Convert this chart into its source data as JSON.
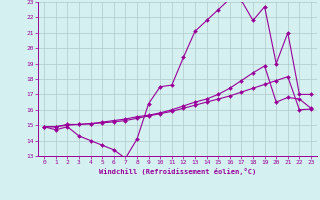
{
  "xlabel": "Windchill (Refroidissement éolien,°C)",
  "bg_color": "#d5f0f0",
  "line_color": "#990099",
  "grid_color": "#b0c8c8",
  "xlim": [
    -0.5,
    23.5
  ],
  "ylim": [
    13,
    23
  ],
  "xticks": [
    0,
    1,
    2,
    3,
    4,
    5,
    6,
    7,
    8,
    9,
    10,
    11,
    12,
    13,
    14,
    15,
    16,
    17,
    18,
    19,
    20,
    21,
    22,
    23
  ],
  "yticks": [
    13,
    14,
    15,
    16,
    17,
    18,
    19,
    20,
    21,
    22,
    23
  ],
  "line1_x": [
    0,
    1,
    2,
    3,
    4,
    5,
    6,
    7,
    8,
    9,
    10,
    11,
    12,
    13,
    14,
    15,
    16,
    17,
    18,
    19,
    20,
    21,
    22,
    23
  ],
  "line1_y": [
    14.9,
    14.7,
    14.9,
    14.3,
    14.0,
    13.7,
    13.4,
    12.85,
    14.1,
    16.4,
    17.5,
    17.6,
    19.4,
    21.1,
    21.8,
    22.5,
    23.2,
    23.1,
    21.8,
    22.7,
    19.0,
    21.0,
    17.0,
    17.0
  ],
  "line2_x": [
    0,
    1,
    2,
    3,
    4,
    5,
    6,
    7,
    8,
    9,
    10,
    11,
    12,
    13,
    14,
    15,
    16,
    17,
    18,
    19,
    20,
    21,
    22,
    23
  ],
  "line2_y": [
    14.9,
    14.9,
    15.05,
    15.05,
    15.1,
    15.2,
    15.3,
    15.4,
    15.55,
    15.65,
    15.8,
    16.0,
    16.25,
    16.5,
    16.7,
    17.0,
    17.4,
    17.9,
    18.4,
    18.85,
    16.5,
    16.8,
    16.7,
    16.1
  ],
  "line3_x": [
    0,
    1,
    2,
    3,
    4,
    5,
    6,
    7,
    8,
    9,
    10,
    11,
    12,
    13,
    14,
    15,
    16,
    17,
    18,
    19,
    20,
    21,
    22,
    23
  ],
  "line3_y": [
    14.9,
    14.9,
    15.0,
    15.05,
    15.1,
    15.15,
    15.22,
    15.3,
    15.45,
    15.6,
    15.75,
    15.9,
    16.1,
    16.3,
    16.5,
    16.7,
    16.9,
    17.15,
    17.4,
    17.65,
    17.9,
    18.15,
    16.0,
    16.05
  ]
}
